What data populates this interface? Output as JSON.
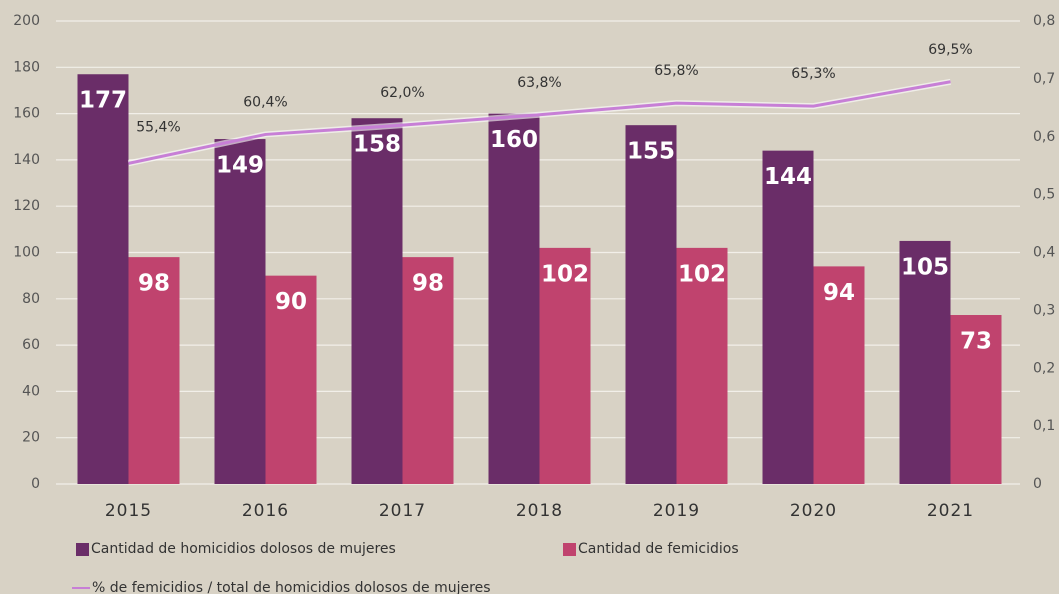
{
  "chart_data": {
    "type": "bar",
    "categories": [
      "2015",
      "2016",
      "2017",
      "2018",
      "2019",
      "2020",
      "2021"
    ],
    "series": [
      {
        "name": "Cantidad de homicidios dolosos de mujeres",
        "color": "#6a2d68",
        "values": [
          177,
          149,
          158,
          160,
          155,
          144,
          105
        ]
      },
      {
        "name": "Cantidad de femicidios",
        "color": "#c0436e",
        "values": [
          98,
          90,
          98,
          102,
          102,
          94,
          73
        ]
      },
      {
        "name": "% de femicidios / total de homicidios dolosos de mujeres",
        "color": "#c77fd6",
        "type": "line",
        "axis": "y2",
        "values": [
          0.554,
          0.604,
          0.62,
          0.638,
          0.658,
          0.653,
          0.695
        ],
        "value_labels": [
          "55,4%",
          "60,4%",
          "62,0%",
          "63,8%",
          "65,8%",
          "65,3%",
          "69,5%"
        ]
      }
    ],
    "ylim": [
      0,
      200
    ],
    "yticks": [
      0,
      20,
      40,
      60,
      80,
      100,
      120,
      140,
      160,
      180,
      200
    ],
    "y2lim": [
      0,
      0.8
    ],
    "y2ticks": [
      0,
      {
        "value": 0.1,
        "label": "0,1"
      },
      {
        "value": 0.2,
        "label": "0,2"
      },
      {
        "value": 0.3,
        "label": "0,3"
      },
      {
        "value": 0.4,
        "label": "0,4"
      },
      {
        "value": 0.5,
        "label": "0,5"
      },
      {
        "value": 0.6,
        "label": "0,6"
      },
      {
        "value": 0.7,
        "label": "0,7"
      },
      {
        "value": 0.8,
        "label": "0,8"
      }
    ],
    "grid": true
  }
}
